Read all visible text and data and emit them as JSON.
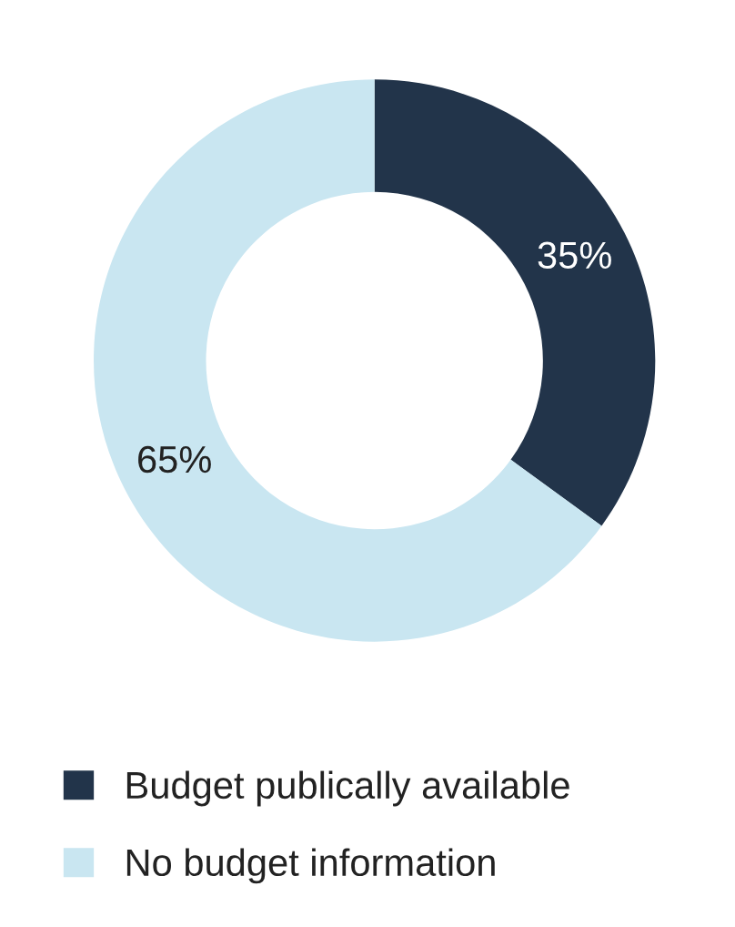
{
  "chart_data": {
    "type": "donut",
    "categories": [
      "Budget publically available",
      "No budget information"
    ],
    "values": [
      35,
      65
    ],
    "colors": [
      "#22344a",
      "#c9e6f1"
    ],
    "value_labels": [
      "35%",
      "65%"
    ],
    "legend": "bottom"
  }
}
